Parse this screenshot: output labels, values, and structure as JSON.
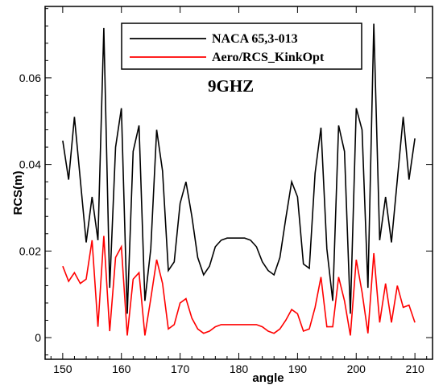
{
  "chart_data": {
    "type": "line",
    "title": "",
    "xlabel": "angle",
    "ylabel": "RCS(m)",
    "xlim": [
      147,
      213
    ],
    "ylim": [
      -0.005,
      0.0765
    ],
    "xticks": [
      150,
      160,
      170,
      180,
      190,
      200,
      210
    ],
    "yticks": [
      0,
      0.02,
      0.04,
      0.06
    ],
    "ytick_labels": [
      "0",
      "0.02",
      "0.04",
      "0.06"
    ],
    "grid": false,
    "legend_position": "top-center",
    "annotation": "9GHZ",
    "series": [
      {
        "name": "NACA 65,3-013",
        "color": "#000000",
        "x": [
          150,
          151,
          152,
          153,
          154,
          155,
          156,
          157,
          158,
          159,
          160,
          161,
          162,
          163,
          164,
          165,
          166,
          167,
          168,
          169,
          170,
          171,
          172,
          173,
          174,
          175,
          176,
          177,
          178,
          179,
          180,
          181,
          182,
          183,
          184,
          185,
          186,
          187,
          188,
          189,
          190,
          191,
          192,
          193,
          194,
          195,
          196,
          197,
          198,
          199,
          200,
          201,
          202,
          203,
          204,
          205,
          206,
          207,
          208,
          209,
          210
        ],
        "y": [
          0.0455,
          0.0365,
          0.051,
          0.0365,
          0.022,
          0.0325,
          0.0225,
          0.0715,
          0.0115,
          0.044,
          0.053,
          0.0055,
          0.043,
          0.049,
          0.0085,
          0.0205,
          0.048,
          0.0385,
          0.0155,
          0.0175,
          0.031,
          0.036,
          0.028,
          0.0185,
          0.0145,
          0.0165,
          0.021,
          0.0225,
          0.023,
          0.023,
          0.023,
          0.023,
          0.0225,
          0.021,
          0.0175,
          0.0155,
          0.0145,
          0.0185,
          0.0275,
          0.036,
          0.0325,
          0.017,
          0.016,
          0.038,
          0.0485,
          0.0205,
          0.0085,
          0.049,
          0.043,
          0.0055,
          0.053,
          0.048,
          0.0115,
          0.0725,
          0.0225,
          0.0325,
          0.022,
          0.0365,
          0.051,
          0.0365,
          0.046
        ]
      },
      {
        "name": "Aero/RCS_KinkOpt",
        "color": "#ff0000",
        "x": [
          150,
          151,
          152,
          153,
          154,
          155,
          156,
          157,
          158,
          159,
          160,
          161,
          162,
          163,
          164,
          165,
          166,
          167,
          168,
          169,
          170,
          171,
          172,
          173,
          174,
          175,
          176,
          177,
          178,
          179,
          180,
          181,
          182,
          183,
          184,
          185,
          186,
          187,
          188,
          189,
          190,
          191,
          192,
          193,
          194,
          195,
          196,
          197,
          198,
          199,
          200,
          201,
          202,
          203,
          204,
          205,
          206,
          207,
          208,
          209,
          210
        ],
        "y": [
          0.0165,
          0.013,
          0.015,
          0.0125,
          0.0135,
          0.0225,
          0.0025,
          0.0235,
          0.0015,
          0.0185,
          0.021,
          0.0005,
          0.0135,
          0.015,
          0.0005,
          0.009,
          0.018,
          0.0125,
          0.002,
          0.003,
          0.008,
          0.009,
          0.0045,
          0.002,
          0.001,
          0.0015,
          0.0025,
          0.003,
          0.003,
          0.003,
          0.003,
          0.003,
          0.003,
          0.003,
          0.0025,
          0.0015,
          0.001,
          0.002,
          0.004,
          0.0065,
          0.0055,
          0.0015,
          0.002,
          0.007,
          0.014,
          0.0025,
          0.0025,
          0.014,
          0.0085,
          0.0005,
          0.018,
          0.0105,
          0.001,
          0.0195,
          0.0035,
          0.0125,
          0.0035,
          0.012,
          0.007,
          0.0075,
          0.0035
        ]
      }
    ]
  }
}
